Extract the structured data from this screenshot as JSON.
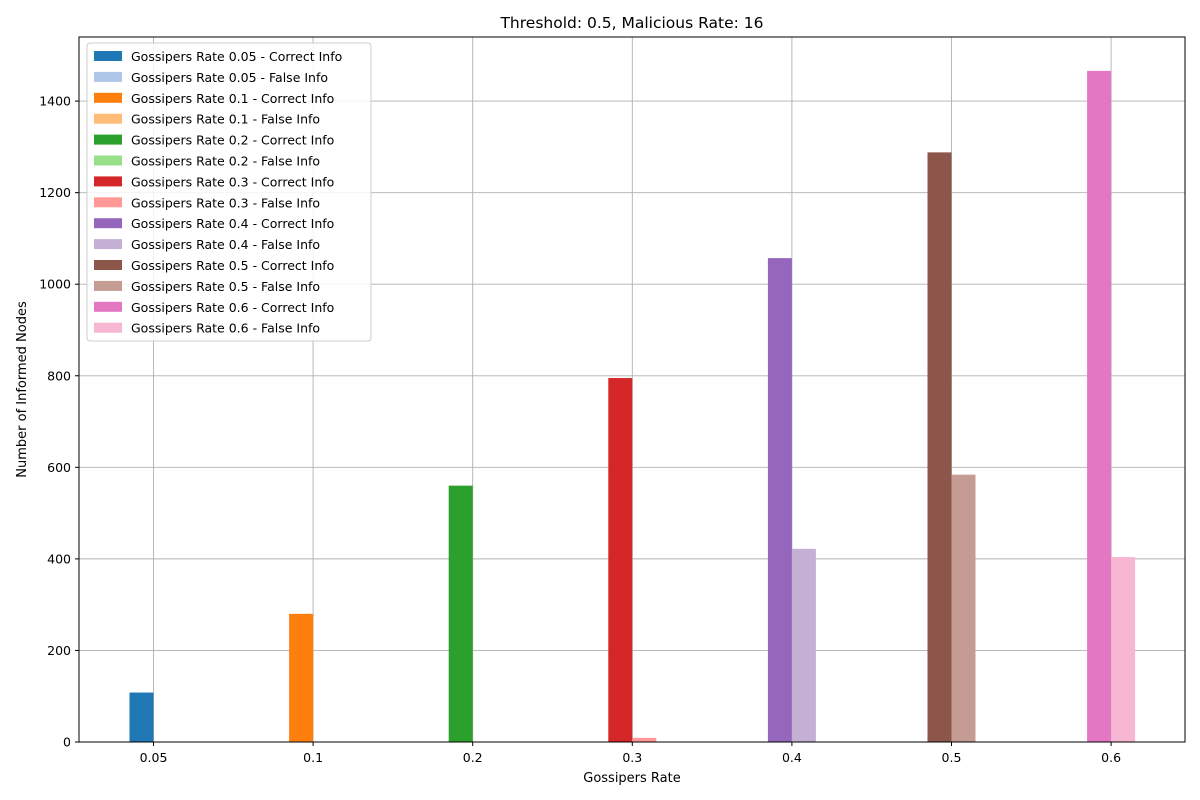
{
  "chart_data": {
    "type": "bar",
    "title": "Threshold: 0.5, Malicious Rate: 16",
    "xlabel": "Gossipers Rate",
    "ylabel": "Number of Informed Nodes",
    "categories": [
      "0.05",
      "0.1",
      "0.2",
      "0.3",
      "0.4",
      "0.5",
      "0.6"
    ],
    "ylim": [
      0,
      1540
    ],
    "yticks": [
      0,
      200,
      400,
      600,
      800,
      1000,
      1200,
      1400
    ],
    "grid": true,
    "legend_position": "upper left",
    "groups": [
      {
        "category": "0.05",
        "correct": 108,
        "false": 0,
        "correct_name": "Gossipers Rate 0.05 - Correct Info",
        "false_name": "Gossipers Rate 0.05 - False Info",
        "correct_color": "#1f77b4",
        "false_color": "#aec7e8"
      },
      {
        "category": "0.1",
        "correct": 280,
        "false": 0,
        "correct_name": "Gossipers Rate 0.1 - Correct Info",
        "false_name": "Gossipers Rate 0.1 - False Info",
        "correct_color": "#ff7f0e",
        "false_color": "#ffbb78"
      },
      {
        "category": "0.2",
        "correct": 560,
        "false": 0,
        "correct_name": "Gossipers Rate 0.2 - Correct Info",
        "false_name": "Gossipers Rate 0.2 - False Info",
        "correct_color": "#2ca02c",
        "false_color": "#98df8a"
      },
      {
        "category": "0.3",
        "correct": 795,
        "false": 9,
        "correct_name": "Gossipers Rate 0.3 - Correct Info",
        "false_name": "Gossipers Rate 0.3 - False Info",
        "correct_color": "#d62728",
        "false_color": "#ff9896"
      },
      {
        "category": "0.4",
        "correct": 1057,
        "false": 422,
        "correct_name": "Gossipers Rate 0.4 - Correct Info",
        "false_name": "Gossipers Rate 0.4 - False Info",
        "correct_color": "#9467bd",
        "false_color": "#c5b0d5"
      },
      {
        "category": "0.5",
        "correct": 1288,
        "false": 584,
        "correct_name": "Gossipers Rate 0.5 - Correct Info",
        "false_name": "Gossipers Rate 0.5 - False Info",
        "correct_color": "#8c564b",
        "false_color": "#c49c94"
      },
      {
        "category": "0.6",
        "correct": 1466,
        "false": 404,
        "correct_name": "Gossipers Rate 0.6 - Correct Info",
        "false_name": "Gossipers Rate 0.6 - False Info",
        "correct_color": "#e377c2",
        "false_color": "#f7b6d2"
      }
    ]
  }
}
